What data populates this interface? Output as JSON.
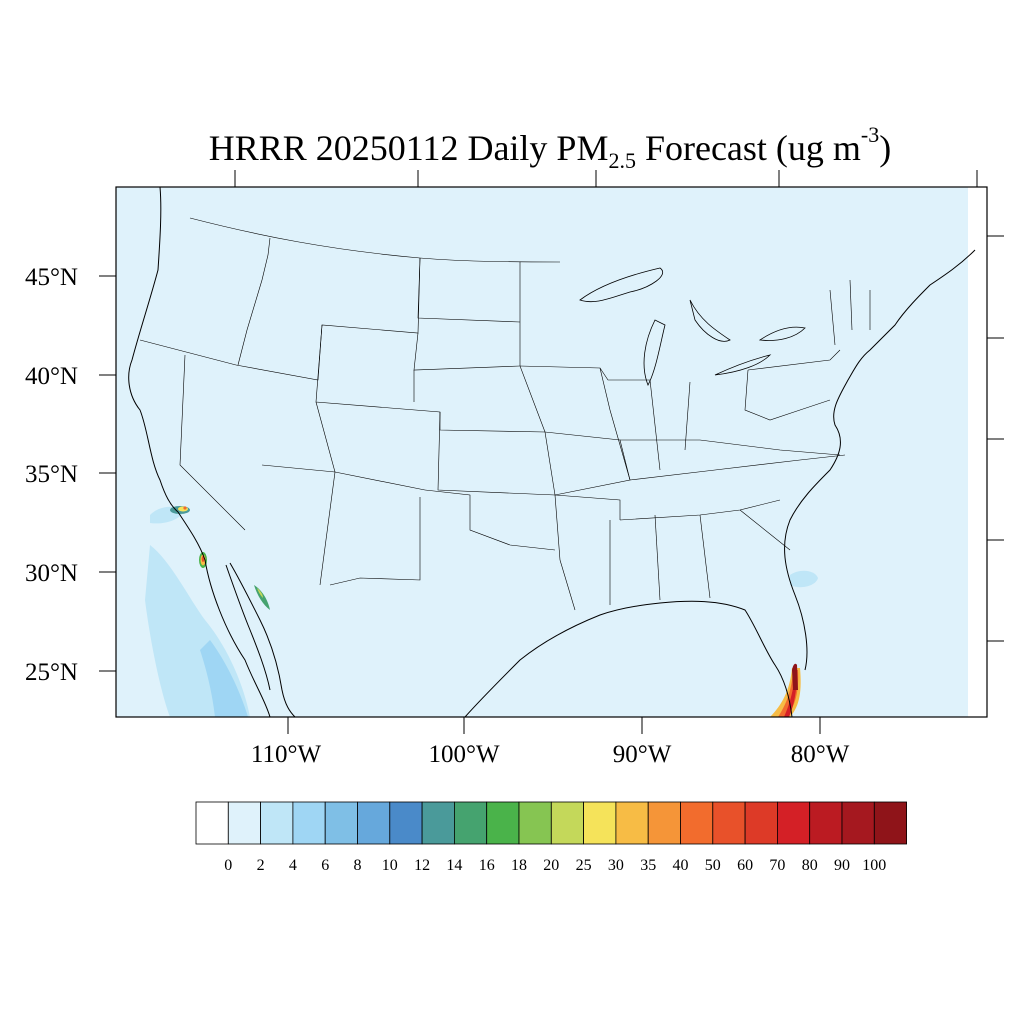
{
  "title": {
    "prefix": "HRRR 20250112 Daily PM",
    "subscript": "2.5",
    "middle": " Forecast (ug m",
    "superscript": "-3",
    "suffix": ")"
  },
  "lat_labels": [
    "45°N",
    "40°N",
    "35°N",
    "30°N",
    "25°N"
  ],
  "lon_labels": [
    "110°W",
    "100°W",
    "90°W",
    "80°W"
  ],
  "colorbar": {
    "labels": [
      "0",
      "2",
      "4",
      "6",
      "8",
      "10",
      "12",
      "14",
      "16",
      "18",
      "20",
      "25",
      "30",
      "35",
      "40",
      "50",
      "60",
      "70",
      "80",
      "90",
      "100"
    ],
    "colors": [
      "#ffffff",
      "#dff2fb",
      "#bfe6f7",
      "#9fd6f4",
      "#7fbfe6",
      "#66a8dc",
      "#4a8ac9",
      "#4a9a9a",
      "#45a36f",
      "#4ab34a",
      "#86c552",
      "#c4d85a",
      "#f5e35a",
      "#f7bc45",
      "#f59538",
      "#f26c2d",
      "#e8512a",
      "#dd3a27",
      "#d42026",
      "#bb1b22",
      "#a5181f",
      "#8f1419"
    ]
  },
  "map": {
    "background_color": "#dff2fb",
    "hotspots": [
      {
        "name": "South Florida smoke plume",
        "level": "80-100"
      },
      {
        "name": "Southern California plume",
        "level": "40-50"
      },
      {
        "name": "Baja California plume",
        "level": "30-50"
      },
      {
        "name": "Gulf of California plume",
        "level": "14-25"
      }
    ]
  }
}
